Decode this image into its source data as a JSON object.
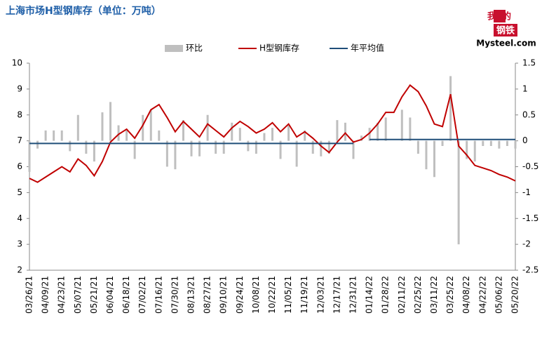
{
  "chart_data": {
    "type": "bar",
    "title": "上海市场H型钢库存（单位：万吨）",
    "logo": {
      "top": "我的",
      "bottom": "钢铁",
      "brand": "Mysteel.com"
    },
    "categories": [
      "03/26/21",
      null,
      "04/09/21",
      null,
      "04/23/21",
      null,
      "05/07/21",
      null,
      "05/21/21",
      null,
      "06/04/21",
      null,
      "06/18/21",
      null,
      "07/02/21",
      null,
      "07/16/21",
      null,
      "07/30/21",
      null,
      "08/13/21",
      null,
      "08/27/21",
      null,
      "09/10/21",
      null,
      "09/24/21",
      null,
      "10/08/21",
      null,
      "10/22/21",
      null,
      "11/05/21",
      null,
      "11/19/21",
      null,
      "12/03/21",
      null,
      "12/17/21",
      null,
      "12/31/21",
      null,
      "01/14/22",
      null,
      "01/28/22",
      null,
      "02/11/22",
      null,
      "02/25/22",
      null,
      "03/11/22",
      null,
      "03/25/22",
      null,
      "04/08/22",
      null,
      "04/22/22",
      null,
      "05/06/22",
      null,
      "05/20/22"
    ],
    "series": [
      {
        "name": "环比",
        "type": "bar",
        "axis": "y2",
        "color": "#bfbfbf",
        "values": [
          -0.6,
          -0.15,
          0.2,
          0.2,
          0.2,
          -0.2,
          0.5,
          -0.25,
          -0.4,
          0.55,
          0.75,
          0.3,
          0.2,
          -0.35,
          0.5,
          0.6,
          0.2,
          -0.5,
          -0.55,
          0.4,
          -0.3,
          -0.3,
          0.5,
          -0.25,
          -0.25,
          0.35,
          0.25,
          -0.2,
          -0.25,
          0.15,
          0.25,
          -0.35,
          0.3,
          -0.5,
          0.2,
          -0.25,
          -0.3,
          -0.25,
          0.4,
          0.35,
          -0.35,
          0.1,
          0.25,
          0.35,
          0.45,
          0,
          0.6,
          0.45,
          -0.25,
          -0.55,
          -0.7,
          -0.1,
          1.25,
          -2.0,
          -0.35,
          -0.4,
          -0.1,
          -0.1,
          -0.15,
          -0.1,
          -0.15
        ]
      },
      {
        "name": "H型钢库存",
        "type": "line",
        "color": "#c00000",
        "values": [
          5.55,
          5.4,
          5.6,
          5.8,
          6.0,
          5.8,
          6.3,
          6.05,
          5.65,
          6.2,
          6.95,
          7.25,
          7.45,
          7.1,
          7.6,
          8.2,
          8.4,
          7.9,
          7.35,
          7.75,
          7.45,
          7.15,
          7.65,
          7.4,
          7.15,
          7.5,
          7.75,
          7.55,
          7.3,
          7.45,
          7.7,
          7.35,
          7.65,
          7.15,
          7.35,
          7.1,
          6.8,
          6.55,
          6.95,
          7.3,
          6.95,
          7.05,
          7.3,
          7.65,
          8.1,
          8.1,
          8.7,
          9.15,
          8.9,
          8.35,
          7.65,
          7.55,
          8.8,
          6.8,
          6.45,
          6.05,
          5.95,
          5.85,
          5.7,
          5.6,
          5.45
        ]
      },
      {
        "name": "年平均值",
        "type": "line",
        "color": "#1f4e79",
        "values": [
          6.9,
          6.9,
          6.9,
          6.9,
          6.9,
          6.9,
          6.9,
          6.9,
          6.9,
          6.9,
          6.9,
          6.9,
          6.9,
          6.9,
          6.9,
          6.9,
          6.9,
          6.9,
          6.9,
          6.9,
          6.9,
          6.9,
          6.9,
          6.9,
          6.9,
          6.9,
          6.9,
          6.9,
          6.9,
          6.9,
          6.9,
          6.9,
          6.9,
          6.9,
          6.9,
          6.9,
          6.9,
          6.9,
          6.9,
          6.9,
          6.9,
          null,
          7.05,
          7.05,
          7.05,
          7.05,
          7.05,
          7.05,
          7.05,
          7.05,
          7.05,
          7.05,
          7.05,
          7.05,
          7.05,
          7.05,
          7.05,
          7.05,
          7.05,
          7.05,
          7.05
        ]
      }
    ],
    "ylim": [
      2,
      10
    ],
    "yticks": [
      2,
      3,
      4,
      5,
      6,
      7,
      8,
      9,
      10
    ],
    "y2lim": [
      -2.5,
      1.5
    ],
    "y2ticks": [
      -2.5,
      -2,
      -1.5,
      -1,
      -0.5,
      0,
      0.5,
      1,
      1.5
    ],
    "legend": "top"
  }
}
